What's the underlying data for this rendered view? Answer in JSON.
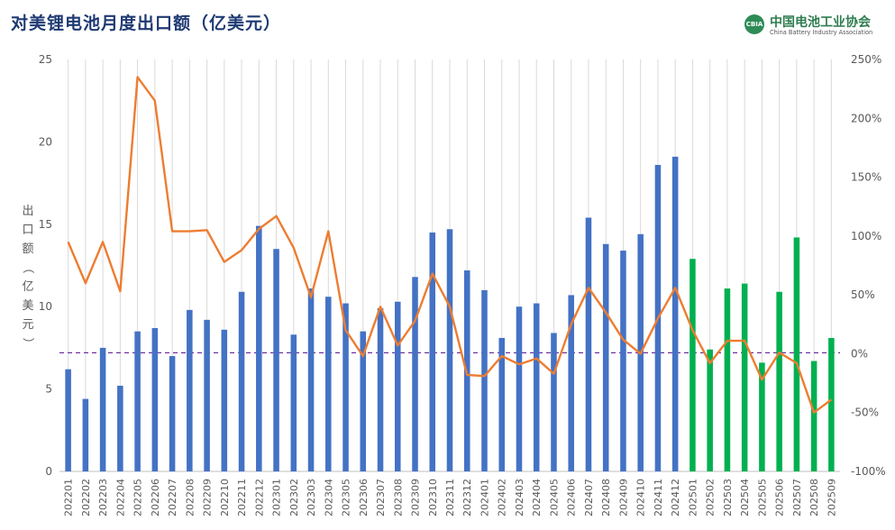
{
  "title": "对美锂电池月度出口额（亿美元）",
  "logo": {
    "name_cn": "中国电池工业协会",
    "name_en": "China Battery Industry Association",
    "mark": "CBIA"
  },
  "chart_data": {
    "type": "bar",
    "ylabel": "出口额（亿美元）",
    "ylim": [
      0,
      25
    ],
    "yticks": [
      "0",
      "5",
      "10",
      "15",
      "20",
      "25"
    ],
    "y2lim": [
      -100,
      250
    ],
    "y2ticks": [
      "-100%",
      "-50%",
      "0%",
      "50%",
      "100%",
      "150%",
      "200%",
      "250%"
    ],
    "grid": "vertical",
    "categories": [
      "202201",
      "202202",
      "202203",
      "202204",
      "202205",
      "202206",
      "202207",
      "202208",
      "202209",
      "202210",
      "202211",
      "202212",
      "202301",
      "202302",
      "202303",
      "202304",
      "202305",
      "202306",
      "202307",
      "202308",
      "202309",
      "202310",
      "202311",
      "202312",
      "202401",
      "202402",
      "202403",
      "202404",
      "202405",
      "202406",
      "202407",
      "202408",
      "202409",
      "202410",
      "202411",
      "202412",
      "202501",
      "202502",
      "202503",
      "202504",
      "202505",
      "202506",
      "202507",
      "202508",
      "202509"
    ],
    "series": [
      {
        "kind": "bar",
        "axis": "left",
        "values": [
          6.2,
          4.4,
          7.5,
          5.2,
          8.5,
          8.7,
          7.0,
          9.8,
          9.2,
          8.6,
          10.9,
          14.9,
          13.5,
          8.3,
          11.1,
          10.6,
          10.2,
          8.5,
          9.9,
          10.3,
          11.8,
          14.5,
          14.7,
          12.2,
          11.0,
          8.1,
          10.0,
          10.2,
          8.4,
          10.7,
          15.4,
          13.8,
          13.4,
          14.4,
          18.6,
          19.1,
          12.9,
          7.4,
          11.1,
          11.4,
          6.6,
          10.9,
          14.2,
          6.7,
          8.1
        ],
        "colors": [
          "#4472C4",
          "#4472C4",
          "#4472C4",
          "#4472C4",
          "#4472C4",
          "#4472C4",
          "#4472C4",
          "#4472C4",
          "#4472C4",
          "#4472C4",
          "#4472C4",
          "#4472C4",
          "#4472C4",
          "#4472C4",
          "#4472C4",
          "#4472C4",
          "#4472C4",
          "#4472C4",
          "#4472C4",
          "#4472C4",
          "#4472C4",
          "#4472C4",
          "#4472C4",
          "#4472C4",
          "#4472C4",
          "#4472C4",
          "#4472C4",
          "#4472C4",
          "#4472C4",
          "#4472C4",
          "#4472C4",
          "#4472C4",
          "#4472C4",
          "#4472C4",
          "#4472C4",
          "#4472C4",
          "#00B050",
          "#00B050",
          "#00B050",
          "#00B050",
          "#00B050",
          "#00B050",
          "#00B050",
          "#00B050",
          "#00B050"
        ]
      },
      {
        "kind": "line",
        "axis": "right",
        "color": "#ED7D31",
        "values": [
          95,
          60,
          95,
          53,
          235,
          215,
          104,
          104,
          105,
          78,
          88,
          106,
          117,
          90,
          48,
          104,
          20,
          -2,
          40,
          7,
          28,
          68,
          40,
          -18,
          -19,
          -2,
          -9,
          -4,
          -17,
          25,
          56,
          35,
          12,
          0,
          30,
          56,
          20,
          -8,
          11,
          11,
          -22,
          1,
          -8,
          -50,
          -39
        ]
      }
    ],
    "reference_line": {
      "axis": "left",
      "value": 7.2,
      "color": "#7030A0"
    }
  }
}
